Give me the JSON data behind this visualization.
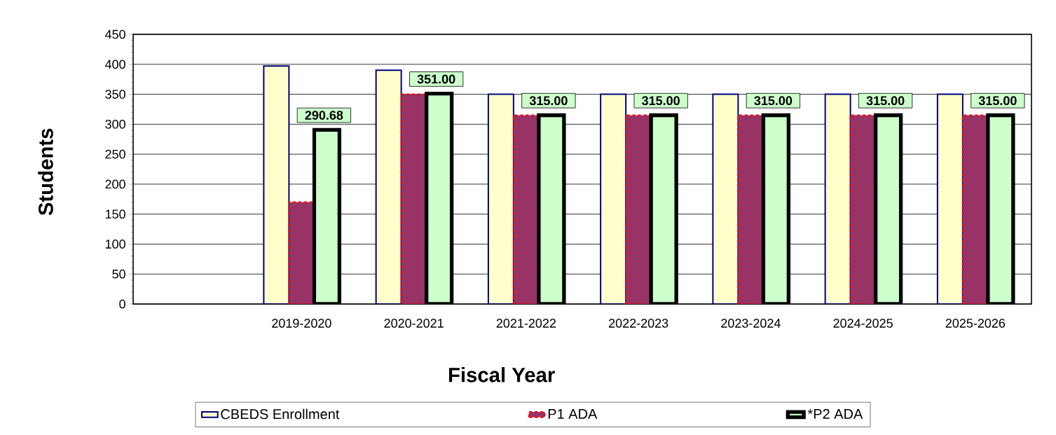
{
  "chart_data": {
    "type": "bar",
    "xlabel": "Fiscal Year",
    "ylabel": "Students",
    "categories": [
      null,
      "2019-2020",
      "2020-2021",
      "2021-2022",
      "2022-2023",
      "2023-2024",
      "2024-2025",
      "2025-2026"
    ],
    "series": [
      {
        "name": "CBEDS Enrollment",
        "color": "#ffffcc",
        "values": [
          null,
          397,
          390,
          350,
          350,
          350,
          350,
          350
        ]
      },
      {
        "name": "P1 ADA",
        "color": "#993366",
        "values": [
          null,
          170,
          350,
          315,
          315,
          315,
          315,
          315
        ]
      },
      {
        "name": "*P2 ADA",
        "color": "#ccffcc",
        "values": [
          null,
          290.68,
          351.0,
          315.0,
          315.0,
          315.0,
          315.0,
          315.0
        ],
        "value_labels": [
          null,
          "290.68",
          "351.00",
          "315.00",
          "315.00",
          "315.00",
          "315.00",
          "315.00"
        ]
      }
    ],
    "ylim": [
      0,
      450
    ],
    "yticks": [
      0,
      50,
      100,
      150,
      200,
      250,
      300,
      350,
      400,
      450
    ],
    "grid": "y",
    "legend": "bottom"
  }
}
